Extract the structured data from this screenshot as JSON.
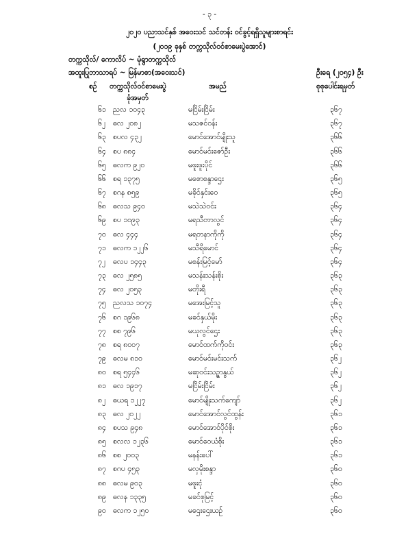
{
  "page_number": "- ၃ -",
  "title": "၂၀၂၀ ပညာသင်နှစ် အဝေးသင် သင်တန်း ဝင်ခွင့်ရရှိသူများစာရင်း",
  "subtitle": "(၂၀၁၉ ခုနှစ် တက္ကသိုလ်ဝင်စာမေးပွဲအောင်)",
  "university": "တက္ကသိုလ်/ ကောလိပ် ~ မုံရွာတက္ကသိုလ်",
  "subject": "အထူးပြုဘာသာရပ် ~ မြန်မာစာ(အဝေးသင်)",
  "total_count": "ဦးရေ (၂၀၅၄) ဦး",
  "columns": {
    "no": "စဉ်",
    "roll_line1": "တက္ကသိုလ်ဝင်စာမေးပွဲ",
    "roll_line2": "ခုံအမှတ်",
    "name": "အမည်",
    "score": "စုစုပေါင်းရမှတ်"
  },
  "rows": [
    {
      "no": "၆၁",
      "roll": "ညလ ၁၀၄၃",
      "name": "မငြိမ်းငြိမ်း",
      "score": "၃၆၇"
    },
    {
      "no": "၆၂",
      "roll": "ဓလ ၂၀၈၂",
      "name": "မသဇင်ဝန်း",
      "score": "၃၆၇"
    },
    {
      "no": "၆၃",
      "roll": "စပလ ၄၃၂",
      "name": "မောင်အောင်မျိုးသူ",
      "score": "၃၆၆"
    },
    {
      "no": "၆၄",
      "roll": "စပ ၈၈၄",
      "name": "မောင်မင်းဇော်ဦး",
      "score": "၃၆၆"
    },
    {
      "no": "၆၅",
      "roll": "ဓလက ၉၂၀",
      "name": "မဖူးဖူးပိုင်",
      "score": "၃၆၆"
    },
    {
      "no": "၆၆",
      "roll": "စရ ၁၃၇၅",
      "name": "မစောစန္ဒာဌေး",
      "score": "၃၆၅"
    },
    {
      "no": "၆၇",
      "roll": "စဂန ၈၅၉",
      "name": "မခိုင်နှင်းဝေ",
      "score": "၃၆၅"
    },
    {
      "no": "၆၈",
      "roll": "ဓလသ ၉၄၀",
      "name": "မသဲသဲဝင်း",
      "score": "၃၆၄"
    },
    {
      "no": "၆၉",
      "roll": "စပ ၁၀၉၃",
      "name": "မရသီတာလွင်",
      "score": "၃၆၄"
    },
    {
      "no": "၇၀",
      "roll": "ဓလ ၄၄၄",
      "name": "မရတနာကိုကို",
      "score": "၃၆၄"
    },
    {
      "no": "၇၁",
      "roll": "ဓလက ၁၂၂၆",
      "name": "မသီရိမောင်",
      "score": "၃၆၄"
    },
    {
      "no": "၇၂",
      "roll": "ဓလပ ၁၄၄၃",
      "name": "မစန်းမြင့်မော်",
      "score": "၃၆၄"
    },
    {
      "no": "၇၃",
      "roll": "ဓလ ၂၅၈၅",
      "name": "မသန်းသန်းစိုး",
      "score": "၃၆၃"
    },
    {
      "no": "၇၄",
      "roll": "ဓလ ၂၀၅၃",
      "name": "မတိုးရီ",
      "score": "၃၆၃"
    },
    {
      "no": "၇၅",
      "roll": "ညလသ ၁၀၇၄",
      "name": "မအေးမြင့်သူ",
      "score": "၃၆၃"
    },
    {
      "no": "၇၆",
      "roll": "စဂ ၁၉၆၈",
      "name": "မခင်နှယ်မိုး",
      "score": "၃၆၃"
    },
    {
      "no": "၇၇",
      "roll": "စစ ၇၉၆",
      "name": "မယုလွင်ဌေး",
      "score": "၃၆၃"
    },
    {
      "no": "၇၈",
      "roll": "စရ ၈၀၀၇",
      "name": "မောင်ထက်ကိုဝင်း",
      "score": "၃၆၃"
    },
    {
      "no": "၇၉",
      "roll": "ဓလမ ၈၁၀",
      "name": "မောင်မင်းမင်းသက်",
      "score": "၃၆၂"
    },
    {
      "no": "၈၀",
      "roll": "စရ ၅၄၄၆",
      "name": "မဆုဝင်းသဉ္ဇာနွယ်",
      "score": "၃၆၂"
    },
    {
      "no": "၈၁",
      "roll": "ဓလ ၁၉၁၇",
      "name": "မငြိမ်းငြိမ်း",
      "score": "၃၆၂"
    },
    {
      "no": "၈၂",
      "roll": "ဓယရ ၁၂၂၇",
      "name": "မောင်မျိုးသက်ကျော်",
      "score": "၃၆၂"
    },
    {
      "no": "၈၃",
      "roll": "ဓလ ၂၀၂၂",
      "name": "မောင်အောင်လွင်ထွန်း",
      "score": "၃၆၁"
    },
    {
      "no": "၈၄",
      "roll": "စပသ ၉၄၈",
      "name": "မောင်အောင်ပိုင်စိုး",
      "score": "၃၆၁"
    },
    {
      "no": "၈၅",
      "roll": "စလလ ၁၂၃၆",
      "name": "မောင်ဝေယံစိုး",
      "score": "၃၆၁"
    },
    {
      "no": "၈၆",
      "roll": "စစ ၂၀၀၃",
      "name": "မနန်းပေါ်",
      "score": "၃၆၁"
    },
    {
      "no": "၈၇",
      "roll": "စဂပ ၄၅၃",
      "name": "မလှမိုးစန္ဒာ",
      "score": "၃၆၀"
    },
    {
      "no": "၈၈",
      "roll": "ဓလမ ၉၀၃",
      "name": "မဖူးငုံ",
      "score": "၃၆၀"
    },
    {
      "no": "၈၉",
      "roll": "ဓလန ၁၃၃၅",
      "name": "မခင်စုမြင့်",
      "score": "၃၆၀"
    },
    {
      "no": "၉၀",
      "roll": "ဓလက ၁၂၅၀",
      "name": "မဌေးဌေးယဉ်",
      "score": "၃၆၀"
    }
  ]
}
